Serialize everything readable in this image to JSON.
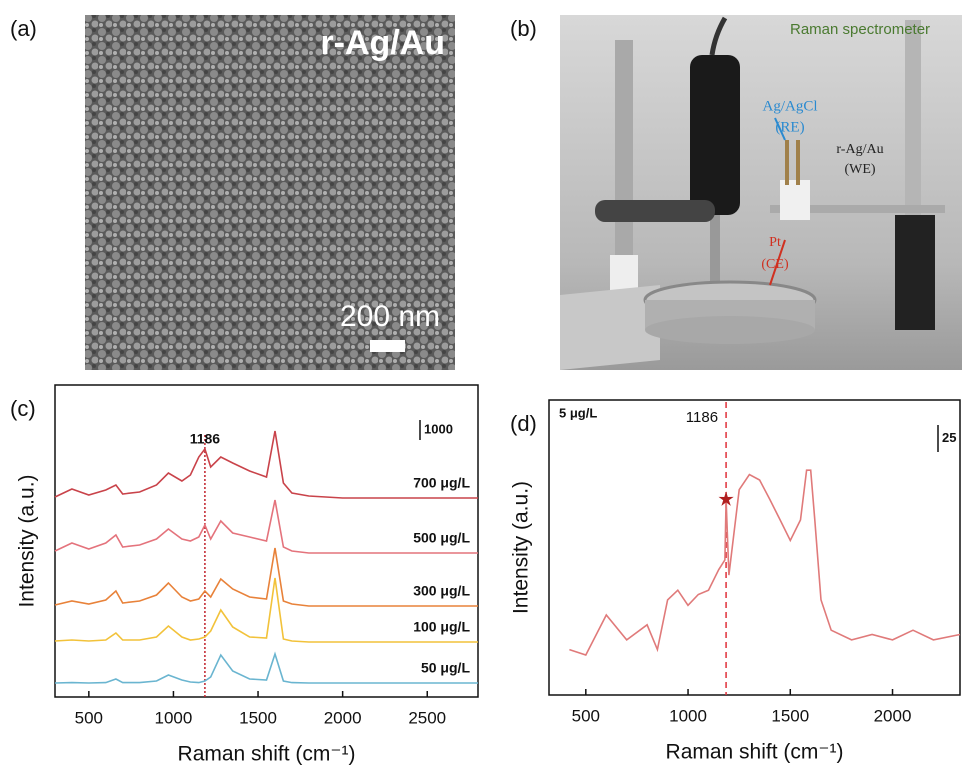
{
  "panels": {
    "a": {
      "label": "(a)",
      "overlay_text": "r-Ag/Au",
      "scale_bar": "200 nm"
    },
    "b": {
      "label": "(b)",
      "annotations": [
        "Raman spectrometer",
        "Ag/AgCl",
        "(RE)",
        "r-Ag/Au",
        "(WE)",
        "Pt",
        "(CE)"
      ]
    }
  },
  "chart_data": [
    {
      "type": "line",
      "panel_label": "(c)",
      "xlabel": "Raman shift (cm⁻¹)",
      "ylabel": "Intensity (a.u.)",
      "xlim": [
        300,
        2800
      ],
      "xticks": [
        500,
        1000,
        1500,
        2000,
        2500
      ],
      "ylim": [
        0,
        15600
      ],
      "reference_line": {
        "x": 1186,
        "color": "#c0202a"
      },
      "scale_bar": {
        "value": 1000
      },
      "x": [
        300,
        400,
        500,
        600,
        660,
        700,
        800,
        900,
        970,
        1050,
        1100,
        1150,
        1186,
        1220,
        1280,
        1350,
        1450,
        1550,
        1600,
        1650,
        1700,
        1800,
        2000,
        2200,
        2400,
        2600,
        2800
      ],
      "series": [
        {
          "name": "700 μg/L",
          "color": "#c9434a",
          "values": [
            10000,
            10400,
            10100,
            10350,
            10600,
            10150,
            10250,
            10600,
            11200,
            10800,
            11100,
            12000,
            12400,
            11500,
            12000,
            11700,
            11300,
            11000,
            13300,
            10700,
            10200,
            10050,
            9950,
            9950,
            9950,
            9950,
            9950
          ]
        },
        {
          "name": "500 μg/L",
          "color": "#e4737c",
          "values": [
            7300,
            7700,
            7400,
            7700,
            8100,
            7500,
            7600,
            7900,
            8400,
            7900,
            7800,
            8000,
            8600,
            7900,
            8800,
            8200,
            8000,
            7800,
            9850,
            7500,
            7300,
            7200,
            7200,
            7200,
            7200,
            7200,
            7200
          ]
        },
        {
          "name": "300 μg/L",
          "color": "#e8823a",
          "values": [
            4600,
            4800,
            4650,
            4850,
            5300,
            4700,
            4800,
            5100,
            5700,
            5000,
            4800,
            4900,
            5300,
            5000,
            5900,
            5400,
            5000,
            4900,
            7450,
            4800,
            4650,
            4550,
            4550,
            4550,
            4550,
            4550,
            4550
          ]
        },
        {
          "name": "100 μg/L",
          "color": "#f2c23a",
          "values": [
            2800,
            2850,
            2800,
            2850,
            3200,
            2850,
            2850,
            3000,
            3550,
            3000,
            2850,
            2900,
            3000,
            3300,
            4350,
            3500,
            3000,
            2950,
            5950,
            2900,
            2800,
            2750,
            2750,
            2750,
            2750,
            2750,
            2750
          ]
        },
        {
          "name": "50 μg/L",
          "color": "#6ab5d0",
          "values": [
            700,
            720,
            700,
            720,
            900,
            720,
            720,
            800,
            1100,
            850,
            750,
            720,
            800,
            1000,
            2100,
            1300,
            900,
            850,
            2150,
            800,
            720,
            700,
            700,
            700,
            700,
            700,
            700
          ]
        }
      ]
    },
    {
      "type": "line",
      "panel_label": "(d)",
      "xlabel": "Raman shift (cm⁻¹)",
      "ylabel": "Intensity (a.u.)",
      "xlim": [
        320,
        2330
      ],
      "xticks": [
        500,
        1000,
        1500,
        2000
      ],
      "ylim": [
        0,
        273
      ],
      "reference_line": {
        "x": 1186,
        "color": "#e0303a"
      },
      "scale_bar": {
        "value": 25
      },
      "sample_label": "5 μg/L",
      "x": [
        420,
        500,
        600,
        700,
        800,
        850,
        900,
        950,
        1000,
        1050,
        1100,
        1150,
        1180,
        1186,
        1200,
        1250,
        1300,
        1350,
        1400,
        1450,
        1500,
        1550,
        1580,
        1600,
        1620,
        1650,
        1700,
        1800,
        1900,
        2000,
        2100,
        2200,
        2330
      ],
      "series": [
        {
          "color": "#e07a7a",
          "values": [
            42,
            37,
            74,
            51,
            65,
            42,
            88,
            97,
            83,
            93,
            97,
            116,
            125,
            181,
            111,
            190,
            204,
            199,
            181,
            162,
            143,
            162,
            208,
            208,
            162,
            88,
            60,
            51,
            56,
            51,
            60,
            51,
            56
          ]
        }
      ]
    }
  ]
}
